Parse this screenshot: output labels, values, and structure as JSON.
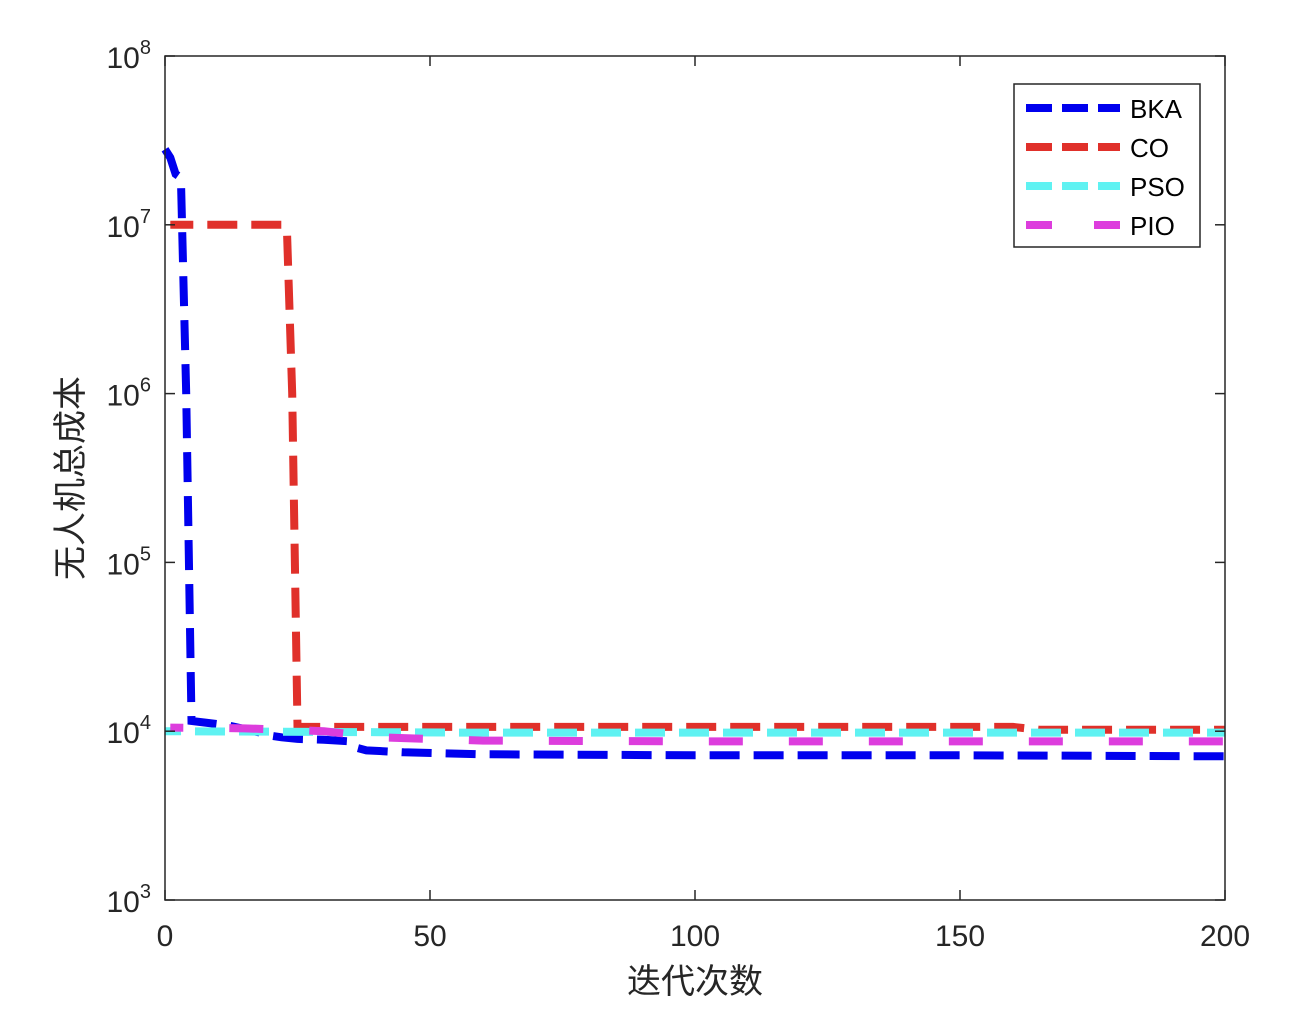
{
  "chart_data": {
    "type": "line",
    "title": "",
    "xlabel": "迭代次数",
    "ylabel": "无人机总成本",
    "xlim": [
      0,
      200
    ],
    "ylim": [
      1000,
      100000000
    ],
    "yscale": "log",
    "xticks": [
      0,
      50,
      100,
      150,
      200
    ],
    "xtick_labels": [
      "0",
      "50",
      "100",
      "150",
      "200"
    ],
    "yticks": [
      1000,
      10000,
      100000,
      1000000,
      10000000,
      100000000
    ],
    "ytick_labels": [
      {
        "base": "10",
        "exp": "3"
      },
      {
        "base": "10",
        "exp": "4"
      },
      {
        "base": "10",
        "exp": "5"
      },
      {
        "base": "10",
        "exp": "6"
      },
      {
        "base": "10",
        "exp": "7"
      },
      {
        "base": "10",
        "exp": "8"
      }
    ],
    "grid": false,
    "legend_position": "top-right",
    "series": [
      {
        "name": "BKA",
        "color": "#0000ee",
        "dash": "dash",
        "points": [
          [
            0,
            28000000
          ],
          [
            1,
            25000000
          ],
          [
            2,
            20000000
          ],
          [
            3,
            19000000
          ],
          [
            4,
            1000000
          ],
          [
            5,
            11500
          ],
          [
            8,
            11200
          ],
          [
            12,
            10800
          ],
          [
            15,
            10300
          ],
          [
            18,
            9800
          ],
          [
            20,
            9400
          ],
          [
            22,
            9200
          ],
          [
            25,
            9000
          ],
          [
            30,
            8900
          ],
          [
            35,
            8700
          ],
          [
            36,
            8000
          ],
          [
            38,
            7700
          ],
          [
            45,
            7500
          ],
          [
            60,
            7300
          ],
          [
            100,
            7200
          ],
          [
            150,
            7200
          ],
          [
            200,
            7100
          ]
        ]
      },
      {
        "name": "CO",
        "color": "#e0302a",
        "dash": "dash",
        "points": [
          [
            1,
            10000000
          ],
          [
            22,
            10000000
          ],
          [
            23,
            9500000
          ],
          [
            24,
            1000000
          ],
          [
            25,
            10600
          ],
          [
            100,
            10600
          ],
          [
            160,
            10600
          ],
          [
            165,
            10200
          ],
          [
            200,
            10200
          ]
        ]
      },
      {
        "name": "PSO",
        "color": "#5ff2f2",
        "dash": "dash",
        "points": [
          [
            0,
            10000
          ],
          [
            30,
            9900
          ],
          [
            60,
            9800
          ],
          [
            100,
            9800
          ],
          [
            150,
            9800
          ],
          [
            200,
            9800
          ]
        ]
      },
      {
        "name": "PIO",
        "color": "#dd3ddd",
        "dash": "longgap",
        "points": [
          [
            1,
            10500
          ],
          [
            15,
            10400
          ],
          [
            30,
            10000
          ],
          [
            40,
            9200
          ],
          [
            60,
            8800
          ],
          [
            100,
            8700
          ],
          [
            150,
            8700
          ],
          [
            200,
            8700
          ]
        ]
      }
    ]
  }
}
